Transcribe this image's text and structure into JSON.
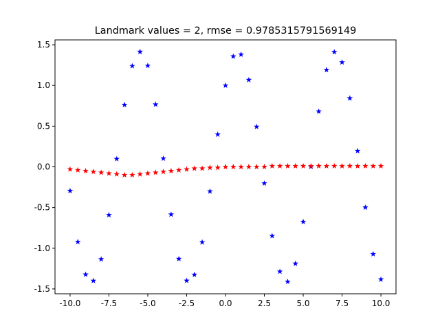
{
  "chart_data": {
    "type": "scatter",
    "title": "Landmark values = 2, rmse = 0.9785315791569149",
    "x": [
      -10,
      -9.5,
      -9,
      -8.5,
      -8,
      -7.5,
      -7,
      -6.5,
      -6,
      -5.5,
      -5,
      -4.5,
      -4,
      -3.5,
      -3,
      -2.5,
      -2,
      -1.5,
      -1,
      -0.5,
      0,
      0.5,
      1,
      1.5,
      2,
      2.5,
      3,
      3.5,
      4,
      4.5,
      5,
      5.5,
      6,
      6.5,
      7,
      7.5,
      8,
      8.5,
      9,
      9.5,
      10
    ],
    "series": [
      {
        "color": "#0000ff",
        "values": [
          -0.295,
          -0.922,
          -1.323,
          -1.4,
          -1.135,
          -0.591,
          0.097,
          0.762,
          1.239,
          1.414,
          1.243,
          0.767,
          0.103,
          -0.585,
          -1.131,
          -1.399,
          -1.325,
          -0.927,
          -0.301,
          0.398,
          1,
          1.357,
          1.381,
          1.068,
          0.493,
          -0.203,
          -0.849,
          -1.287,
          -1.411,
          -1.189,
          -0.675,
          0.003,
          0.681,
          1.192,
          1.411,
          1.285,
          0.843,
          0.196,
          -0.499,
          -1.072,
          -1.383
        ]
      },
      {
        "color": "#ff0000",
        "values": [
          -0.03,
          -0.04,
          -0.05,
          -0.06,
          -0.07,
          -0.08,
          -0.09,
          -0.1,
          -0.1,
          -0.09,
          -0.08,
          -0.07,
          -0.06,
          -0.05,
          -0.04,
          -0.03,
          -0.02,
          -0.02,
          -0.01,
          -0.01,
          0,
          0,
          0,
          0,
          0,
          0,
          0.01,
          0.01,
          0.01,
          0.01,
          0.01,
          0.01,
          0.01,
          0.01,
          0.01,
          0.01,
          0.01,
          0.01,
          0.01,
          0.01,
          0.01
        ]
      }
    ],
    "xlim": [
      -10.97,
      10.97
    ],
    "ylim": [
      -1.56,
      1.56
    ],
    "xticks": [
      {
        "value": -10,
        "label": "-10.0"
      },
      -7.5,
      {
        "value": -5,
        "label": "-5.0"
      },
      -2.5,
      {
        "value": 0,
        "label": "0.0"
      },
      2.5,
      {
        "value": 5,
        "label": "5.0"
      },
      7.5,
      {
        "value": 10,
        "label": "10.0"
      }
    ],
    "yticks": [
      -1.5,
      {
        "value": -1,
        "label": "-1.0"
      },
      -0.5,
      {
        "value": 0,
        "label": "0.0"
      },
      0.5,
      {
        "value": 1,
        "label": "1.0"
      },
      1.5
    ],
    "grid": false
  }
}
